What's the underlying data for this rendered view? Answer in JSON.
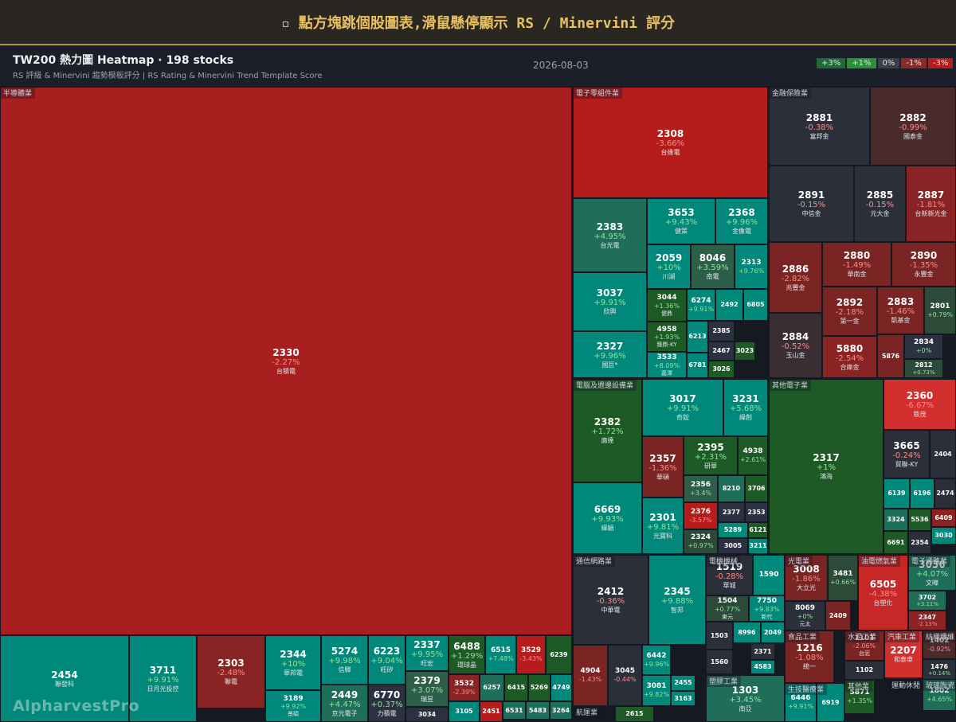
{
  "header": {
    "title": "▫ 點方塊跳個股圖表,滑鼠懸停顯示 RS / Minervini 評分"
  },
  "toolbar": {
    "title": "TW200 熱力圖 Heatmap · 198 stocks",
    "subtitle": "RS 評級 & Minervini 趨勢模板評分 | RS Rating & Minervini Trend Template Score",
    "date": "2026-08-03"
  },
  "legend": [
    "+3%",
    "+1%",
    "0%",
    "-1%",
    "-3%"
  ],
  "sectors": [
    "半導體業",
    "電子零組件業",
    "金融保險業",
    "電腦及週邊設備業",
    "其他電子業",
    "通信網路業",
    "電機機械",
    "塑膠工業",
    "航運業",
    "光電業",
    "油電燃氣業",
    "電子通路業",
    "食品工業",
    "水泥工業",
    "汽車工業",
    "紡織纖維",
    "生技醫療業",
    "其他業",
    "運動休閒",
    "玻璃陶瓷"
  ],
  "tiles": [
    {
      "code": "2330",
      "change": "-2.27%",
      "name": "台積電"
    },
    {
      "code": "2454",
      "name": "聯發科"
    },
    {
      "code": "3711",
      "change": "+9.91%",
      "name": "日月光投控"
    },
    {
      "code": "2303",
      "change": "-2.48%",
      "name": "聯電"
    },
    {
      "code": "2344",
      "change": "+10%",
      "name": "華邦電"
    },
    {
      "code": "3189",
      "change": "+9.92%",
      "name": "景碩"
    },
    {
      "code": "5274",
      "change": "+9.98%",
      "name": "信驊"
    },
    {
      "code": "2449",
      "change": "+4.47%",
      "name": "京元電子"
    },
    {
      "code": "6223",
      "change": "+9.04%",
      "name": "旺矽"
    },
    {
      "code": "6770",
      "change": "+0.37%",
      "name": "力積電"
    },
    {
      "code": "2337",
      "change": "+9.95%",
      "name": "旺宏"
    },
    {
      "code": "2379",
      "change": "+3.07%",
      "name": "瑞昱"
    },
    {
      "code": "3034"
    },
    {
      "code": "6488",
      "change": "+1.29%",
      "name": "環球晶"
    },
    {
      "code": "6515",
      "change": "+7.48%"
    },
    {
      "code": "3529",
      "change": "-3.43%"
    },
    {
      "code": "6239"
    },
    {
      "code": "3532",
      "change": "-2.39%"
    },
    {
      "code": "6257"
    },
    {
      "code": "6415"
    },
    {
      "code": "5269"
    },
    {
      "code": "4749"
    },
    {
      "code": "3105"
    },
    {
      "code": "2451"
    },
    {
      "code": "6531"
    },
    {
      "code": "5483"
    },
    {
      "code": "3264"
    },
    {
      "code": "2308",
      "change": "-3.66%",
      "name": "台達電"
    },
    {
      "code": "2383",
      "change": "+4.95%",
      "name": "台光電"
    },
    {
      "code": "3037",
      "change": "+9.91%",
      "name": "欣興"
    },
    {
      "code": "2327",
      "change": "+9.96%",
      "name": "國巨*"
    },
    {
      "code": "3653",
      "change": "+9.43%",
      "name": "健策"
    },
    {
      "code": "2368",
      "change": "+9.96%",
      "name": "金像電"
    },
    {
      "code": "2059",
      "change": "+10%",
      "name": "川湖"
    },
    {
      "code": "8046",
      "change": "+3.59%",
      "name": "南電"
    },
    {
      "code": "2313",
      "change": "+9.76%"
    },
    {
      "code": "3044",
      "change": "+1.36%",
      "name": "健鼎"
    },
    {
      "code": "4958",
      "change": "+1.93%",
      "name": "臻鼎-KY"
    },
    {
      "code": "3533",
      "change": "+8.09%",
      "name": "嘉澤"
    },
    {
      "code": "6274",
      "change": "+9.91%"
    },
    {
      "code": "2492"
    },
    {
      "code": "6805"
    },
    {
      "code": "6213"
    },
    {
      "code": "2385"
    },
    {
      "code": "2467"
    },
    {
      "code": "3023"
    },
    {
      "code": "6781"
    },
    {
      "code": "3026"
    },
    {
      "code": "2881",
      "change": "-0.38%",
      "name": "富邦金"
    },
    {
      "code": "2882",
      "change": "-0.99%",
      "name": "國泰金"
    },
    {
      "code": "2891",
      "change": "-0.15%",
      "name": "中信金"
    },
    {
      "code": "2885",
      "change": "-0.15%",
      "name": "元大金"
    },
    {
      "code": "2887",
      "change": "-1.81%",
      "name": "台新新光金"
    },
    {
      "code": "2886",
      "change": "-2.82%",
      "name": "兆豐金"
    },
    {
      "code": "2884",
      "change": "-0.52%",
      "name": "玉山金"
    },
    {
      "code": "2880",
      "change": "-1.49%",
      "name": "華南金"
    },
    {
      "code": "2890",
      "change": "-1.35%",
      "name": "永豐金"
    },
    {
      "code": "2892",
      "change": "-2.18%",
      "name": "第一金"
    },
    {
      "code": "2883",
      "change": "-1.46%",
      "name": "凱基金"
    },
    {
      "code": "2801",
      "change": "+0.79%"
    },
    {
      "code": "5880",
      "change": "-2.54%",
      "name": "合庫金"
    },
    {
      "code": "5876"
    },
    {
      "code": "2834",
      "change": "+0%"
    },
    {
      "code": "2812",
      "change": "+0.73%"
    },
    {
      "code": "2382",
      "change": "+1.72%",
      "name": "廣達"
    },
    {
      "code": "6669",
      "change": "+9.93%",
      "name": "緯穎"
    },
    {
      "code": "3017",
      "change": "+9.91%",
      "name": "奇鋐"
    },
    {
      "code": "3231",
      "change": "+5.68%",
      "name": "緯創"
    },
    {
      "code": "2357",
      "change": "-1.36%",
      "name": "華碩"
    },
    {
      "code": "2395",
      "change": "+2.31%",
      "name": "研華"
    },
    {
      "code": "4938",
      "change": "+2.61%"
    },
    {
      "code": "2301",
      "change": "+9.81%",
      "name": "光寶科"
    },
    {
      "code": "2356",
      "change": "+3.4%"
    },
    {
      "code": "8210"
    },
    {
      "code": "3706"
    },
    {
      "code": "2376",
      "change": "-3.57%"
    },
    {
      "code": "2377"
    },
    {
      "code": "2353"
    },
    {
      "code": "2324",
      "change": "+0.97%"
    },
    {
      "code": "5289"
    },
    {
      "code": "6121"
    },
    {
      "code": "3005"
    },
    {
      "code": "3211"
    },
    {
      "code": "2317",
      "change": "+1%",
      "name": "鴻海"
    },
    {
      "code": "2360",
      "change": "-6.67%",
      "name": "致茂"
    },
    {
      "code": "3665",
      "change": "-0.24%",
      "name": "貿聯-KY"
    },
    {
      "code": "2404"
    },
    {
      "code": "6139"
    },
    {
      "code": "6196"
    },
    {
      "code": "2474"
    },
    {
      "code": "3324"
    },
    {
      "code": "5536"
    },
    {
      "code": "6409"
    },
    {
      "code": "3030"
    },
    {
      "code": "6691"
    },
    {
      "code": "2354"
    },
    {
      "code": "2412",
      "change": "-0.36%",
      "name": "中華電"
    },
    {
      "code": "2345",
      "change": "+9.88%",
      "name": "智邦"
    },
    {
      "code": "4904",
      "change": "-1.43%"
    },
    {
      "code": "3045",
      "change": "-0.44%"
    },
    {
      "code": "6442",
      "change": "+9.96%"
    },
    {
      "code": "3081",
      "change": "+9.82%"
    },
    {
      "code": "2455"
    },
    {
      "code": "3163"
    },
    {
      "code": "1519",
      "change": "-0.28%",
      "name": "華城"
    },
    {
      "code": "1590"
    },
    {
      "code": "1504",
      "change": "+0.77%",
      "name": "東元"
    },
    {
      "code": "7750",
      "change": "+9.83%",
      "name": "新代"
    },
    {
      "code": "1503"
    },
    {
      "code": "8996"
    },
    {
      "code": "2049"
    },
    {
      "code": "1560"
    },
    {
      "code": "2371"
    },
    {
      "code": "4583"
    },
    {
      "code": "1303",
      "change": "+3.45%",
      "name": "南亞"
    },
    {
      "code": "2615"
    },
    {
      "code": "3008",
      "change": "-1.86%",
      "name": "大立光"
    },
    {
      "code": "3481",
      "change": "+0.66%"
    },
    {
      "code": "8069",
      "change": "+0%",
      "name": "元太"
    },
    {
      "code": "2409"
    },
    {
      "code": "6505",
      "change": "-4.38%",
      "name": "台塑化"
    },
    {
      "code": "3036",
      "change": "+4.07%",
      "name": "文曄"
    },
    {
      "code": "3702",
      "change": "+3.11%"
    },
    {
      "code": "2347",
      "change": "-2.13%"
    },
    {
      "code": "1216",
      "change": "-1.08%",
      "name": "統一"
    },
    {
      "code": "1101",
      "change": "-2.06%",
      "name": "台泥"
    },
    {
      "code": "1102"
    },
    {
      "code": "2207",
      "name": "和泰車"
    },
    {
      "code": "1402",
      "change": "-0.92%"
    },
    {
      "code": "1476",
      "change": "+0.14%"
    },
    {
      "code": "6446",
      "change": "+9.91%"
    },
    {
      "code": "6919"
    },
    {
      "code": "5871",
      "change": "+1.35%"
    },
    {
      "code": "1802",
      "change": "+4.65%"
    }
  ],
  "watermark": "AlpharvestPro"
}
